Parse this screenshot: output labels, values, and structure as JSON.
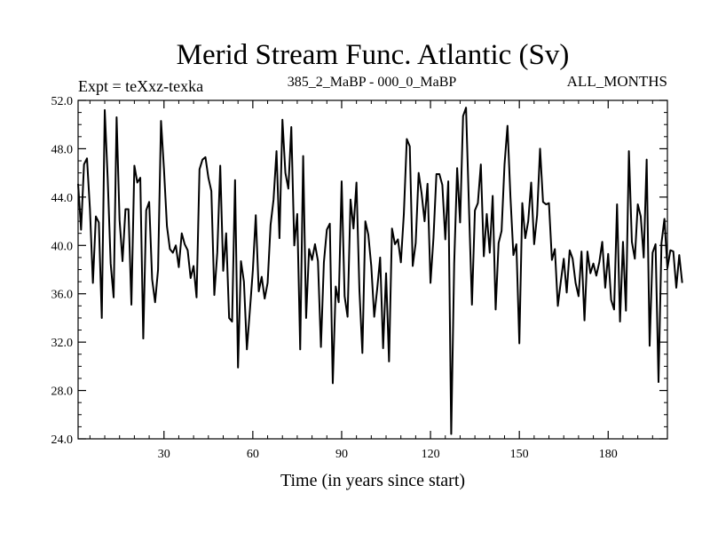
{
  "chart_data": {
    "type": "line",
    "title": "Merid Stream Func. Atlantic (Sv)",
    "subtitle_left": "Expt = teXxz-texka",
    "subtitle_center": "385_2_MaBP - 000_0_MaBP",
    "subtitle_right": "ALL_MONTHS",
    "xlabel": "Time (in years since start)",
    "ylabel": "",
    "xlim": [
      1,
      200
    ],
    "ylim": [
      24.0,
      52.0
    ],
    "x_ticks": [
      30,
      60,
      90,
      120,
      150,
      180
    ],
    "x_tick_labels": [
      "30",
      "60",
      "90",
      "120",
      "150",
      "180"
    ],
    "y_ticks": [
      24,
      28,
      32,
      36,
      40,
      44,
      48,
      52
    ],
    "y_tick_labels": [
      "24.0",
      "28.0",
      "32.0",
      "36.0",
      "40.0",
      "44.0",
      "48.0",
      "52.0"
    ],
    "grid": false,
    "series": [
      {
        "name": "Merid Stream Func. Atlantic",
        "x_start": 1,
        "x_step": 1,
        "values": [
          45.1,
          41.3,
          46.7,
          47.2,
          43.0,
          36.9,
          42.4,
          41.9,
          34.0,
          51.2,
          45.5,
          38.5,
          35.7,
          50.6,
          42.1,
          38.7,
          43.0,
          43.0,
          35.1,
          46.6,
          45.2,
          45.6,
          32.3,
          42.9,
          43.6,
          37.2,
          35.3,
          38.0,
          50.3,
          46.3,
          41.6,
          39.7,
          39.4,
          40.0,
          38.2,
          41.0,
          40.1,
          39.6,
          37.3,
          38.3,
          35.7,
          46.3,
          47.1,
          47.3,
          45.6,
          44.5,
          35.9,
          39.4,
          46.6,
          37.9,
          41.0,
          34.0,
          33.7,
          45.4,
          29.9,
          38.7,
          37.0,
          31.4,
          34.6,
          37.9,
          42.5,
          36.2,
          37.4,
          35.6,
          36.9,
          41.7,
          43.8,
          47.8,
          40.6,
          50.4,
          46.0,
          44.7,
          49.8,
          40.0,
          42.6,
          31.4,
          47.4,
          34.0,
          39.7,
          38.8,
          40.1,
          38.7,
          31.6,
          38.6,
          41.3,
          41.8,
          28.6,
          36.6,
          35.3,
          45.3,
          35.8,
          34.1,
          43.8,
          41.4,
          45.2,
          36.3,
          31.1,
          42.0,
          40.9,
          38.3,
          34.1,
          36.4,
          39.0,
          31.5,
          37.7,
          30.4,
          41.4,
          40.1,
          40.5,
          38.6,
          42.6,
          48.8,
          48.2,
          38.3,
          40.2,
          46.0,
          44.3,
          42.0,
          45.1,
          36.9,
          40.6,
          45.9,
          45.9,
          45.0,
          40.5,
          45.3,
          24.4,
          38.5,
          46.4,
          41.9,
          50.7,
          51.4,
          43.1,
          35.1,
          42.9,
          43.5,
          46.7,
          39.1,
          42.6,
          39.4,
          44.1,
          34.7,
          40.2,
          41.2,
          46.7,
          49.9,
          44.0,
          39.2,
          40.1,
          31.9,
          43.5,
          40.6,
          42.0,
          45.2,
          40.1,
          42.5,
          48.0,
          43.6,
          43.4,
          43.5,
          38.8,
          39.7,
          35.0,
          37.0,
          38.9,
          36.1,
          39.6,
          38.9,
          36.9,
          35.8,
          39.5,
          33.8,
          39.5,
          37.7,
          38.5,
          37.5,
          38.6,
          40.3,
          36.5,
          39.3,
          35.5,
          34.7,
          43.4,
          33.7,
          40.3,
          34.6,
          47.8,
          40.3,
          38.9,
          43.4,
          42.4,
          39.0,
          47.1,
          31.7,
          39.4,
          40.1,
          28.7,
          40.2,
          42.2,
          38.1,
          39.6,
          39.5,
          36.5,
          39.2,
          36.9
        ]
      }
    ]
  }
}
